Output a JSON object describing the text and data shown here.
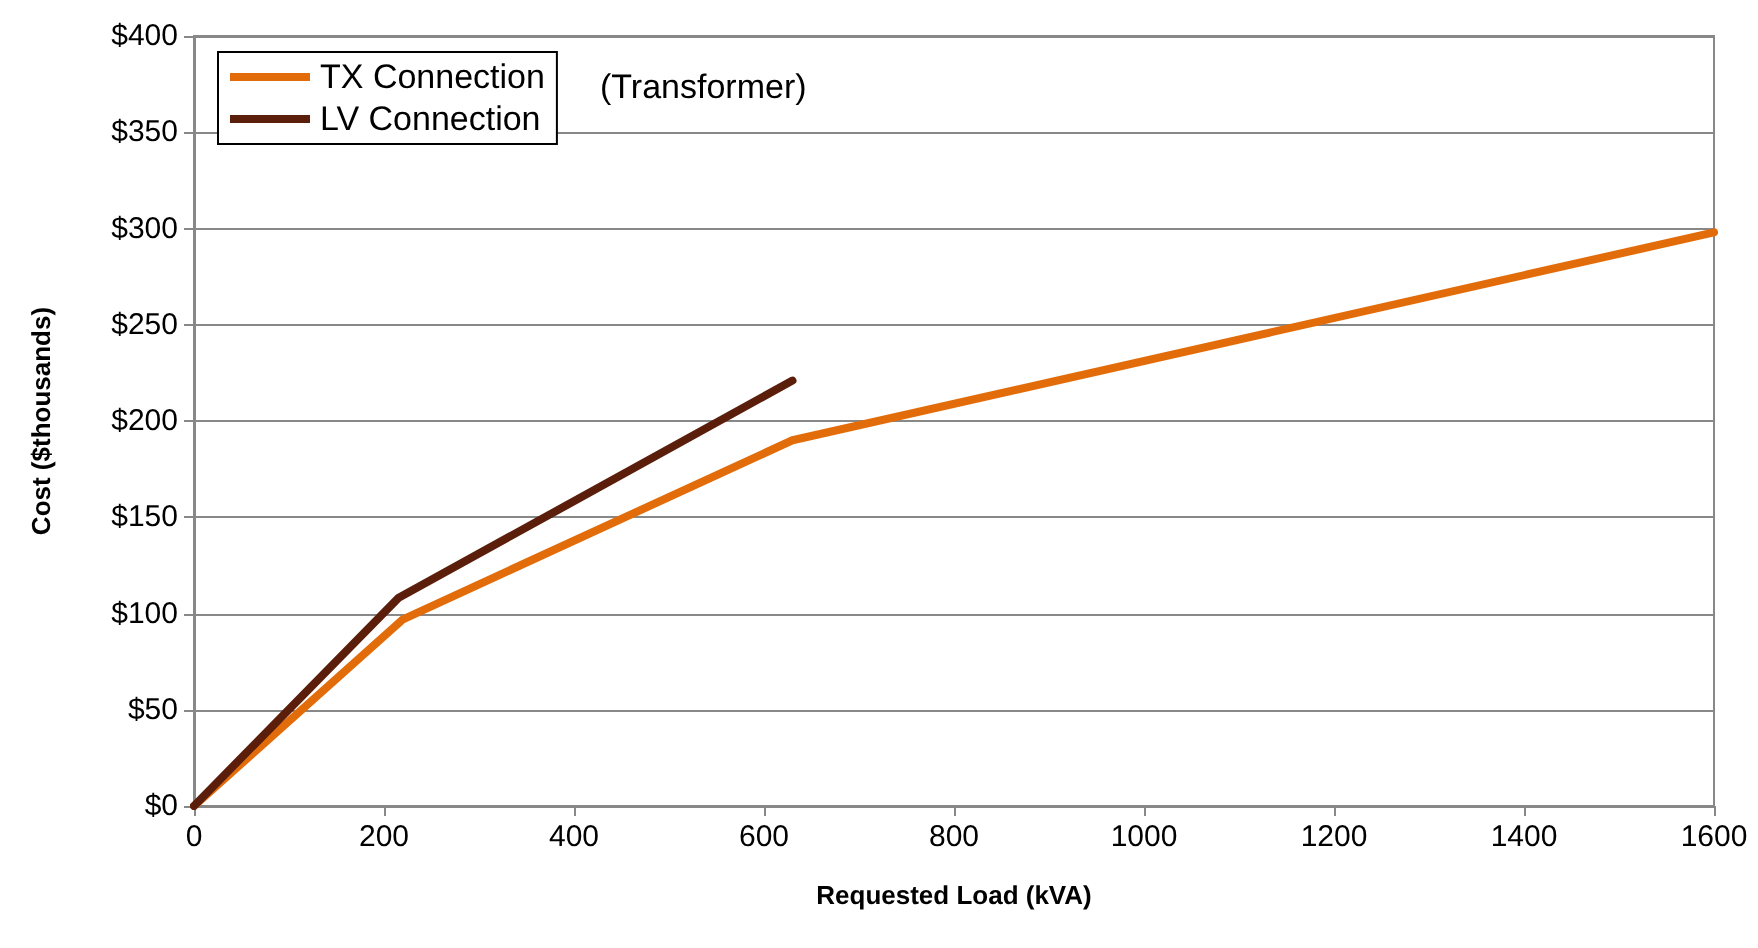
{
  "chart_data": {
    "type": "line",
    "xlabel": "Requested Load (kVA)",
    "ylabel": "Cost ($thousands)",
    "xlim": [
      0,
      1600
    ],
    "xticks": [
      0,
      200,
      400,
      600,
      800,
      1000,
      1200,
      1400,
      1600
    ],
    "ylim": [
      0,
      400
    ],
    "yticks": [
      {
        "value": 0,
        "label": "$0"
      },
      {
        "value": 50,
        "label": "$50"
      },
      {
        "value": 100,
        "label": "$100"
      },
      {
        "value": 150,
        "label": "$150"
      },
      {
        "value": 200,
        "label": "$200"
      },
      {
        "value": 250,
        "label": "$250"
      },
      {
        "value": 300,
        "label": "$300"
      },
      {
        "value": 350,
        "label": "$350"
      },
      {
        "value": 400,
        "label": "$400"
      }
    ],
    "series": [
      {
        "name": "TX Connection",
        "color": "#e36c0a",
        "x": [
          0,
          220,
          630,
          1600
        ],
        "values": [
          0,
          97,
          190,
          298
        ]
      },
      {
        "name": "LV Connection",
        "color": "#5a1e0a",
        "x": [
          0,
          215,
          630
        ],
        "values": [
          0,
          108,
          221
        ]
      }
    ],
    "annotations": [
      "(Transformer)"
    ],
    "grid": "y",
    "legend": "top left",
    "marker": "none",
    "line_style": "solid"
  }
}
